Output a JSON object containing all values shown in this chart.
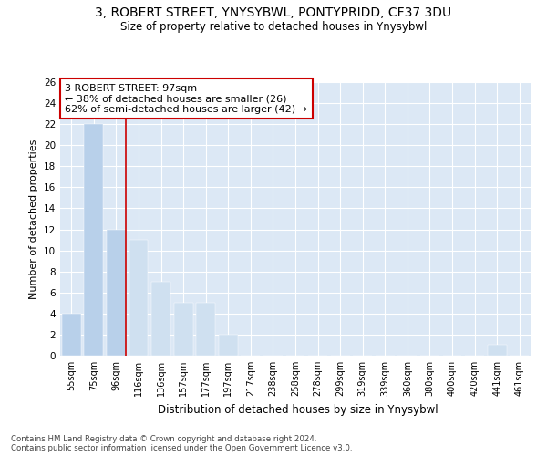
{
  "title": "3, ROBERT STREET, YNYSYBWL, PONTYPRIDD, CF37 3DU",
  "subtitle": "Size of property relative to detached houses in Ynysybwl",
  "xlabel": "Distribution of detached houses by size in Ynysybwl",
  "ylabel": "Number of detached properties",
  "categories": [
    "55sqm",
    "75sqm",
    "96sqm",
    "116sqm",
    "136sqm",
    "157sqm",
    "177sqm",
    "197sqm",
    "217sqm",
    "238sqm",
    "258sqm",
    "278sqm",
    "299sqm",
    "319sqm",
    "339sqm",
    "360sqm",
    "380sqm",
    "400sqm",
    "420sqm",
    "441sqm",
    "461sqm"
  ],
  "values": [
    4,
    22,
    12,
    11,
    7,
    5,
    5,
    2,
    0,
    0,
    0,
    0,
    0,
    0,
    0,
    0,
    0,
    0,
    0,
    1,
    0
  ],
  "bar_color_left": "#b8d0ea",
  "bar_color_right": "#cfe0f0",
  "highlight_index": 2,
  "highlight_line_color": "#cc0000",
  "annotation_line1": "3 ROBERT STREET: 97sqm",
  "annotation_line2": "← 38% of detached houses are smaller (26)",
  "annotation_line3": "62% of semi-detached houses are larger (42) →",
  "annotation_box_color": "#cc0000",
  "ylim": [
    0,
    26
  ],
  "yticks": [
    0,
    2,
    4,
    6,
    8,
    10,
    12,
    14,
    16,
    18,
    20,
    22,
    24,
    26
  ],
  "background_color": "#dce8f5",
  "figure_background": "#ffffff",
  "grid_color": "#ffffff",
  "footer_line1": "Contains HM Land Registry data © Crown copyright and database right 2024.",
  "footer_line2": "Contains public sector information licensed under the Open Government Licence v3.0."
}
